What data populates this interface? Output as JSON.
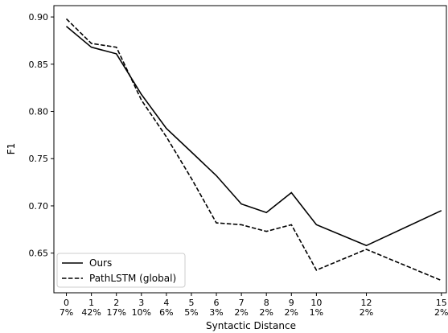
{
  "chart_data": {
    "type": "line",
    "xlabel": "Syntactic Distance",
    "ylabel": "F1",
    "x": [
      0,
      1,
      2,
      3,
      4,
      5,
      6,
      7,
      8,
      9,
      10,
      12,
      15
    ],
    "x_tick_labels": [
      "0",
      "1",
      "2",
      "3",
      "4",
      "5",
      "6",
      "7",
      "8",
      "9",
      "10",
      "12",
      "15"
    ],
    "x_tick_percent_labels": [
      "7%",
      "42%",
      "17%",
      "10%",
      "6%",
      "5%",
      "3%",
      "2%",
      "2%",
      "2%",
      "1%",
      "2%",
      "2%"
    ],
    "xlim": [
      -0.5,
      15.2
    ],
    "ylim": [
      0.608,
      0.912
    ],
    "y_ticks": [
      0.65,
      0.7,
      0.75,
      0.8,
      0.85,
      0.9
    ],
    "y_tick_labels": [
      "0.65",
      "0.70",
      "0.75",
      "0.80",
      "0.85",
      "0.90"
    ],
    "grid": false,
    "legend_position": "lower-left",
    "series": [
      {
        "name": "Ours",
        "style": "solid",
        "color": "#000000",
        "values": [
          0.89,
          0.868,
          0.861,
          0.818,
          0.782,
          0.757,
          0.732,
          0.702,
          0.693,
          0.714,
          0.68,
          0.658,
          0.695
        ]
      },
      {
        "name": "PathLSTM (global)",
        "style": "dashed",
        "color": "#000000",
        "values": [
          0.898,
          0.872,
          0.868,
          0.812,
          0.773,
          0.729,
          0.682,
          0.68,
          0.673,
          0.68,
          0.632,
          0.654,
          0.621
        ]
      }
    ]
  }
}
